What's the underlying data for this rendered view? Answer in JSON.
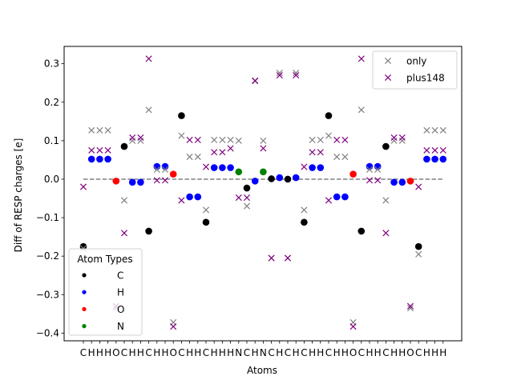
{
  "chart_data": {
    "type": "scatter",
    "xlabel": "Atoms",
    "ylabel": "Diff of RESP charges [e]",
    "ylim": [
      -0.42,
      0.345
    ],
    "yticks": [
      -0.4,
      -0.3,
      -0.2,
      -0.1,
      0.0,
      0.1,
      0.2,
      0.3
    ],
    "ytick_labels": [
      "−0.4",
      "−0.3",
      "−0.2",
      "−0.1",
      "0.0",
      "0.1",
      "0.2",
      "0.3"
    ],
    "categories": [
      "C",
      "H",
      "H",
      "H",
      "O",
      "C",
      "H",
      "H",
      "C",
      "H",
      "H",
      "O",
      "C",
      "H",
      "H",
      "C",
      "H",
      "H",
      "H",
      "N",
      "C",
      "H",
      "N",
      "C",
      "H",
      "C",
      "H",
      "C",
      "H",
      "H",
      "C",
      "H",
      "H",
      "O",
      "C",
      "H",
      "H",
      "C",
      "H",
      "H",
      "O",
      "C",
      "H",
      "H",
      "H"
    ],
    "reference_line": {
      "y": 0.0,
      "style": "dashed",
      "color": "#808080"
    },
    "element_colors": {
      "C": "#000000",
      "H": "#0000ff",
      "O": "#ff0000",
      "N": "#008000"
    },
    "atom_series_values": [
      -0.175,
      0.052,
      0.052,
      0.052,
      -0.005,
      0.085,
      -0.008,
      -0.008,
      -0.135,
      0.033,
      0.033,
      0.013,
      0.165,
      -0.046,
      -0.046,
      -0.112,
      0.03,
      0.03,
      0.03,
      0.019,
      -0.023,
      -0.005,
      0.019,
      0.001,
      0.004,
      0.0,
      0.004,
      -0.112,
      0.03,
      0.03,
      0.165,
      -0.046,
      -0.046,
      0.013,
      -0.135,
      0.033,
      0.033,
      0.085,
      -0.008,
      -0.008,
      -0.005,
      -0.175,
      0.052,
      0.052,
      0.052
    ],
    "series": [
      {
        "name": "only",
        "marker": "x",
        "color": "#808080",
        "values": [
          -0.18,
          0.127,
          0.127,
          0.127,
          -0.335,
          -0.055,
          0.1,
          0.1,
          0.18,
          0.025,
          0.025,
          -0.372,
          0.113,
          0.058,
          0.058,
          -0.08,
          0.102,
          0.102,
          0.102,
          0.1,
          -0.07,
          0.255,
          0.1,
          -0.205,
          0.276,
          -0.205,
          0.276,
          -0.08,
          0.102,
          0.102,
          0.113,
          0.058,
          0.058,
          -0.372,
          0.18,
          0.025,
          0.025,
          -0.055,
          0.1,
          0.1,
          -0.335,
          -0.195,
          0.127,
          0.127,
          0.127
        ]
      },
      {
        "name": "plus148",
        "marker": "x",
        "color": "#800080",
        "values": [
          -0.02,
          0.075,
          0.075,
          0.075,
          -0.33,
          -0.14,
          0.108,
          0.108,
          0.313,
          -0.003,
          -0.003,
          -0.383,
          -0.055,
          0.102,
          0.102,
          0.032,
          0.07,
          0.07,
          0.08,
          -0.048,
          -0.048,
          0.256,
          0.08,
          -0.205,
          0.27,
          -0.205,
          0.27,
          0.032,
          0.07,
          0.07,
          -0.055,
          0.102,
          0.102,
          -0.383,
          0.313,
          -0.003,
          -0.003,
          -0.14,
          0.108,
          0.108,
          -0.33,
          -0.02,
          0.075,
          0.075,
          0.075
        ]
      }
    ],
    "legends": [
      {
        "position": "top-right",
        "title": "",
        "entries": [
          {
            "label": "only",
            "marker": "x",
            "color": "#808080"
          },
          {
            "label": "plus148",
            "marker": "x",
            "color": "#800080"
          }
        ]
      },
      {
        "position": "lower-left",
        "title": "Atom Types",
        "entries": [
          {
            "label": "C",
            "marker": "dot",
            "color": "#000000"
          },
          {
            "label": "H",
            "marker": "dot",
            "color": "#0000ff"
          },
          {
            "label": "O",
            "marker": "dot",
            "color": "#ff0000"
          },
          {
            "label": "N",
            "marker": "dot",
            "color": "#008000"
          }
        ]
      }
    ],
    "grid": false
  }
}
